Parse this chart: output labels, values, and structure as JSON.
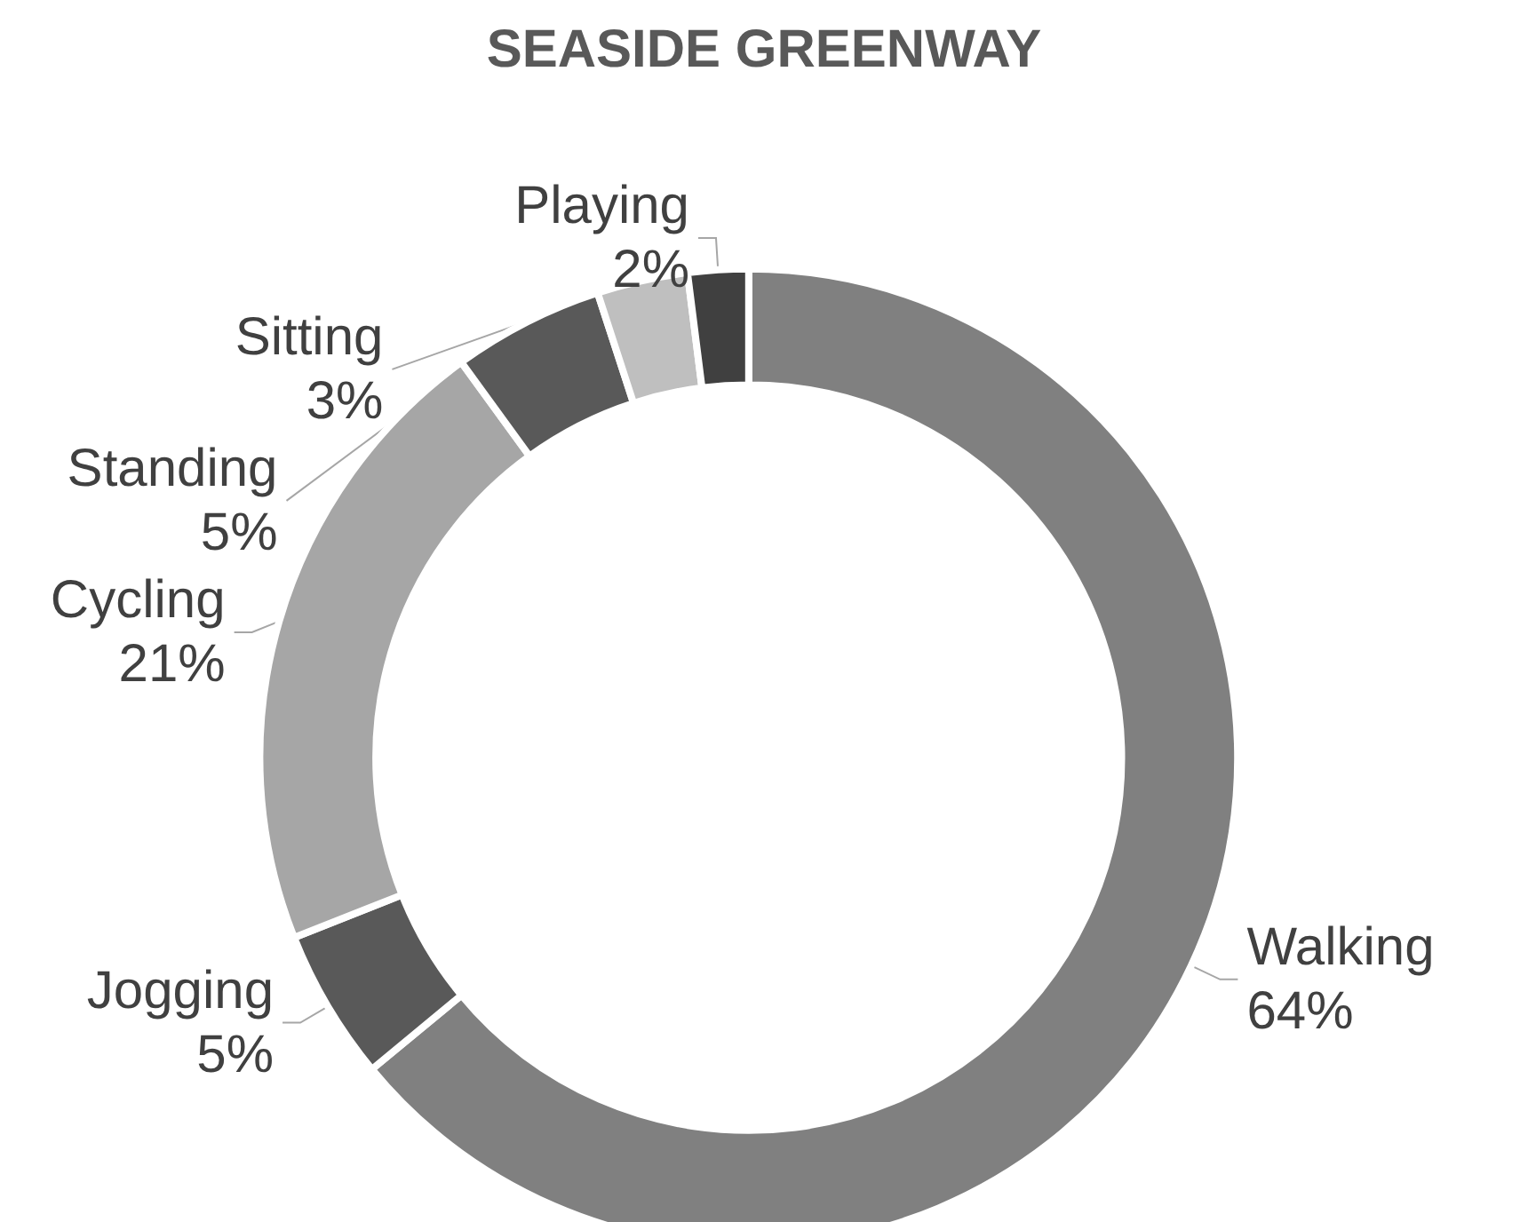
{
  "chart_data": {
    "type": "donut",
    "title": "SEASIDE GREENWAY",
    "categories": [
      "Walking",
      "Jogging",
      "Cycling",
      "Standing",
      "Sitting",
      "Playing"
    ],
    "values": [
      64,
      5,
      21,
      5,
      3,
      2
    ],
    "value_labels": [
      "64%",
      "5%",
      "21%",
      "5%",
      "3%",
      "2%"
    ],
    "colors": [
      "#808080",
      "#595959",
      "#a6a6a6",
      "#595959",
      "#bfbfbf",
      "#404040"
    ],
    "legend": false
  }
}
